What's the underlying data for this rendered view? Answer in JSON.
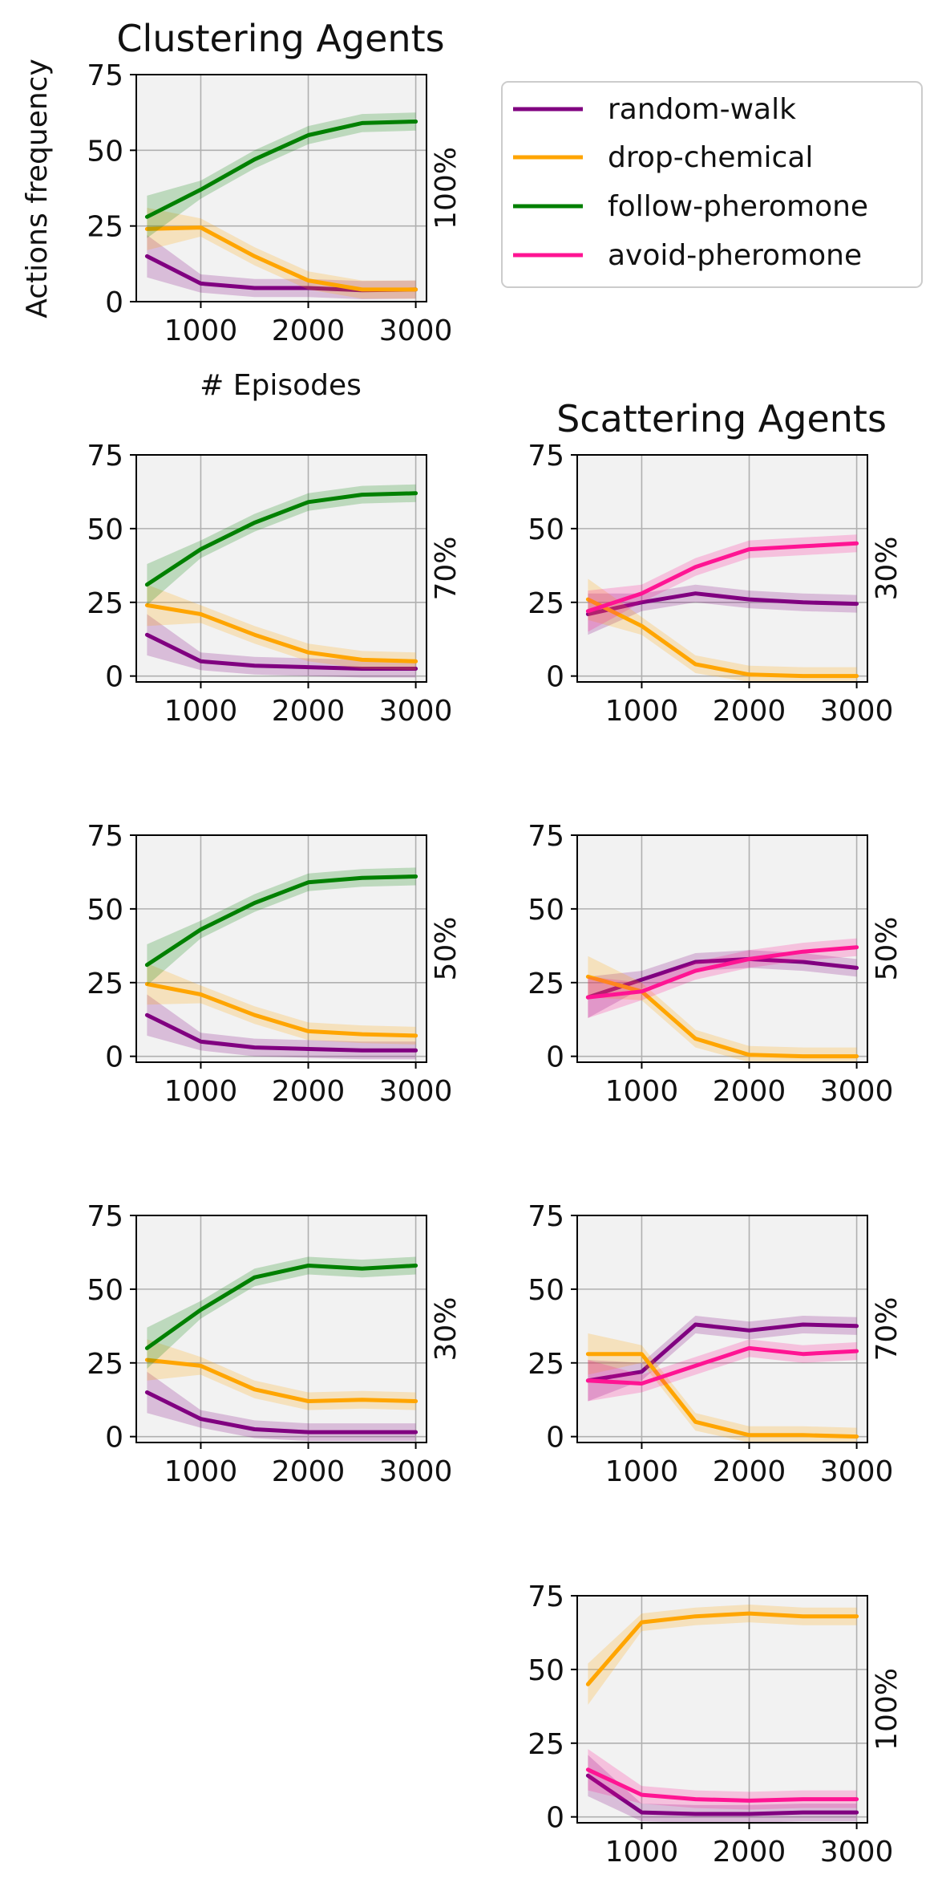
{
  "figure": {
    "column_titles": [
      "Clustering Agents",
      "Scattering Agents"
    ],
    "ylabel": "Actions frequency",
    "xlabel": "# Episodes"
  },
  "legend": [
    {
      "key": "random_walk",
      "label": "random-walk",
      "color": "#800080"
    },
    {
      "key": "drop_chemical",
      "label": "drop-chemical",
      "color": "#FFA500"
    },
    {
      "key": "follow_pheromone",
      "label": "follow-pheromone",
      "color": "#008000"
    },
    {
      "key": "avoid_pheromone",
      "label": "avoid-pheromone",
      "color": "#FF1493"
    }
  ],
  "chart_data": [
    {
      "type": "line",
      "group": "Clustering Agents",
      "side_label": "100%",
      "title": "Clustering Agents",
      "xlabel": "# Episodes",
      "ylabel": "Actions frequency",
      "x": [
        500,
        1000,
        1500,
        2000,
        2500,
        3000
      ],
      "xlim": [
        400,
        3100
      ],
      "ylim": [
        0,
        75
      ],
      "xticks": [
        1000,
        2000,
        3000
      ],
      "yticks": [
        0,
        25,
        50,
        75
      ],
      "grid": true,
      "series": [
        {
          "key": "random_walk",
          "values": [
            15,
            6,
            4.5,
            4.5,
            3.8,
            4
          ]
        },
        {
          "key": "drop_chemical",
          "values": [
            24,
            24.5,
            15,
            7,
            4,
            4
          ]
        },
        {
          "key": "follow_pheromone",
          "values": [
            28,
            37,
            47,
            55,
            59,
            59.5
          ]
        }
      ]
    },
    {
      "type": "line",
      "group": "Clustering Agents",
      "side_label": "70%",
      "x": [
        500,
        1000,
        1500,
        2000,
        2500,
        3000
      ],
      "xlim": [
        400,
        3100
      ],
      "ylim": [
        -2,
        75
      ],
      "xticks": [
        1000,
        2000,
        3000
      ],
      "yticks": [
        0,
        25,
        50,
        75
      ],
      "grid": true,
      "series": [
        {
          "key": "random_walk",
          "values": [
            14,
            5,
            3.5,
            3,
            2.5,
            2.5
          ]
        },
        {
          "key": "drop_chemical",
          "values": [
            24,
            21,
            14,
            8,
            5.5,
            5
          ]
        },
        {
          "key": "follow_pheromone",
          "values": [
            31,
            43,
            52,
            59,
            61.5,
            62
          ]
        }
      ]
    },
    {
      "type": "line",
      "group": "Clustering Agents",
      "side_label": "50%",
      "x": [
        500,
        1000,
        1500,
        2000,
        2500,
        3000
      ],
      "xlim": [
        400,
        3100
      ],
      "ylim": [
        -2,
        75
      ],
      "xticks": [
        1000,
        2000,
        3000
      ],
      "yticks": [
        0,
        25,
        50,
        75
      ],
      "grid": true,
      "series": [
        {
          "key": "random_walk",
          "values": [
            14,
            5,
            3,
            2.5,
            2,
            2
          ]
        },
        {
          "key": "drop_chemical",
          "values": [
            24.5,
            21,
            14,
            8.5,
            7.5,
            7
          ]
        },
        {
          "key": "follow_pheromone",
          "values": [
            31,
            43,
            52,
            59,
            60.5,
            61
          ]
        }
      ]
    },
    {
      "type": "line",
      "group": "Clustering Agents",
      "side_label": "30%",
      "x": [
        500,
        1000,
        1500,
        2000,
        2500,
        3000
      ],
      "xlim": [
        400,
        3100
      ],
      "ylim": [
        -2,
        75
      ],
      "xticks": [
        1000,
        2000,
        3000
      ],
      "yticks": [
        0,
        25,
        50,
        75
      ],
      "grid": true,
      "series": [
        {
          "key": "random_walk",
          "values": [
            15,
            6,
            2.5,
            1.5,
            1.5,
            1.5
          ]
        },
        {
          "key": "drop_chemical",
          "values": [
            26,
            24,
            16,
            12,
            12.5,
            12
          ]
        },
        {
          "key": "follow_pheromone",
          "values": [
            30,
            43,
            54,
            58,
            57,
            58
          ]
        }
      ]
    },
    {
      "type": "line",
      "group": "Scattering Agents",
      "side_label": "30%",
      "title": "Scattering Agents",
      "x": [
        500,
        1000,
        1500,
        2000,
        2500,
        3000
      ],
      "xlim": [
        400,
        3100
      ],
      "ylim": [
        -2,
        75
      ],
      "xticks": [
        1000,
        2000,
        3000
      ],
      "yticks": [
        0,
        25,
        50,
        75
      ],
      "grid": true,
      "series": [
        {
          "key": "random_walk",
          "values": [
            21,
            25,
            28,
            26,
            25,
            24.5
          ]
        },
        {
          "key": "drop_chemical",
          "values": [
            26,
            17,
            4,
            0.5,
            0,
            0
          ]
        },
        {
          "key": "avoid_pheromone",
          "values": [
            22,
            28,
            37,
            43,
            44,
            45
          ]
        }
      ]
    },
    {
      "type": "line",
      "group": "Scattering Agents",
      "side_label": "50%",
      "x": [
        500,
        1000,
        1500,
        2000,
        2500,
        3000
      ],
      "xlim": [
        400,
        3100
      ],
      "ylim": [
        -2,
        75
      ],
      "xticks": [
        1000,
        2000,
        3000
      ],
      "yticks": [
        0,
        25,
        50,
        75
      ],
      "grid": true,
      "series": [
        {
          "key": "random_walk",
          "values": [
            20,
            26,
            32,
            33,
            32,
            30
          ]
        },
        {
          "key": "drop_chemical",
          "values": [
            27,
            22,
            6,
            0.5,
            0,
            0
          ]
        },
        {
          "key": "avoid_pheromone",
          "values": [
            20,
            22,
            29,
            33,
            35.5,
            37
          ]
        }
      ]
    },
    {
      "type": "line",
      "group": "Scattering Agents",
      "side_label": "70%",
      "x": [
        500,
        1000,
        1500,
        2000,
        2500,
        3000
      ],
      "xlim": [
        400,
        3100
      ],
      "ylim": [
        -2,
        75
      ],
      "xticks": [
        1000,
        2000,
        3000
      ],
      "yticks": [
        0,
        25,
        50,
        75
      ],
      "grid": true,
      "series": [
        {
          "key": "random_walk",
          "values": [
            19,
            22,
            38,
            36,
            38,
            37.5
          ]
        },
        {
          "key": "drop_chemical",
          "values": [
            28,
            28,
            5,
            0.5,
            0.5,
            0
          ]
        },
        {
          "key": "avoid_pheromone",
          "values": [
            19,
            18,
            24,
            30,
            28,
            29
          ]
        }
      ]
    },
    {
      "type": "line",
      "group": "Scattering Agents",
      "side_label": "100%",
      "x": [
        500,
        1000,
        1500,
        2000,
        2500,
        3000
      ],
      "xlim": [
        400,
        3100
      ],
      "ylim": [
        -2,
        75
      ],
      "xticks": [
        1000,
        2000,
        3000
      ],
      "yticks": [
        0,
        25,
        50,
        75
      ],
      "grid": true,
      "series": [
        {
          "key": "random_walk",
          "values": [
            14,
            1.5,
            1,
            1,
            1.5,
            1.5
          ]
        },
        {
          "key": "drop_chemical",
          "values": [
            45,
            66,
            68,
            69,
            68,
            68
          ]
        },
        {
          "key": "avoid_pheromone",
          "values": [
            16,
            7.5,
            6,
            5.5,
            6,
            6
          ]
        }
      ]
    }
  ]
}
